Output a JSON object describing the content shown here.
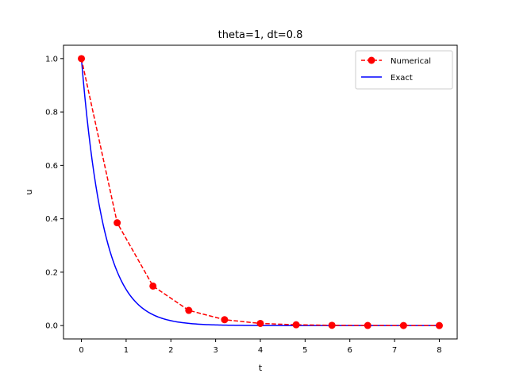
{
  "chart_data": {
    "type": "line",
    "title": "theta=1, dt=0.8",
    "xlabel": "t",
    "ylabel": "u",
    "xlim": [
      -0.4,
      8.4
    ],
    "ylim": [
      -0.05,
      1.05
    ],
    "xticks": [
      "0",
      "1",
      "2",
      "3",
      "4",
      "5",
      "6",
      "7",
      "8"
    ],
    "yticks": [
      "0.0",
      "0.2",
      "0.4",
      "0.6",
      "0.8",
      "1.0"
    ],
    "grid": false,
    "legend_position": "top-right",
    "series": [
      {
        "name": "Numerical",
        "style": "dashed-with-markers",
        "color": "#ff0000",
        "x": [
          0,
          0.8,
          1.6,
          2.4,
          3.2,
          4.0,
          4.8,
          5.6,
          6.4,
          7.2,
          8.0
        ],
        "y": [
          1.0,
          0.385,
          0.148,
          0.057,
          0.022,
          0.008,
          0.003,
          0.001,
          0.0005,
          0.0002,
          0.0001
        ]
      },
      {
        "name": "Exact",
        "style": "solid",
        "color": "#0000ff",
        "function": "exp(-2t)",
        "x_range": [
          0,
          8
        ]
      }
    ]
  }
}
